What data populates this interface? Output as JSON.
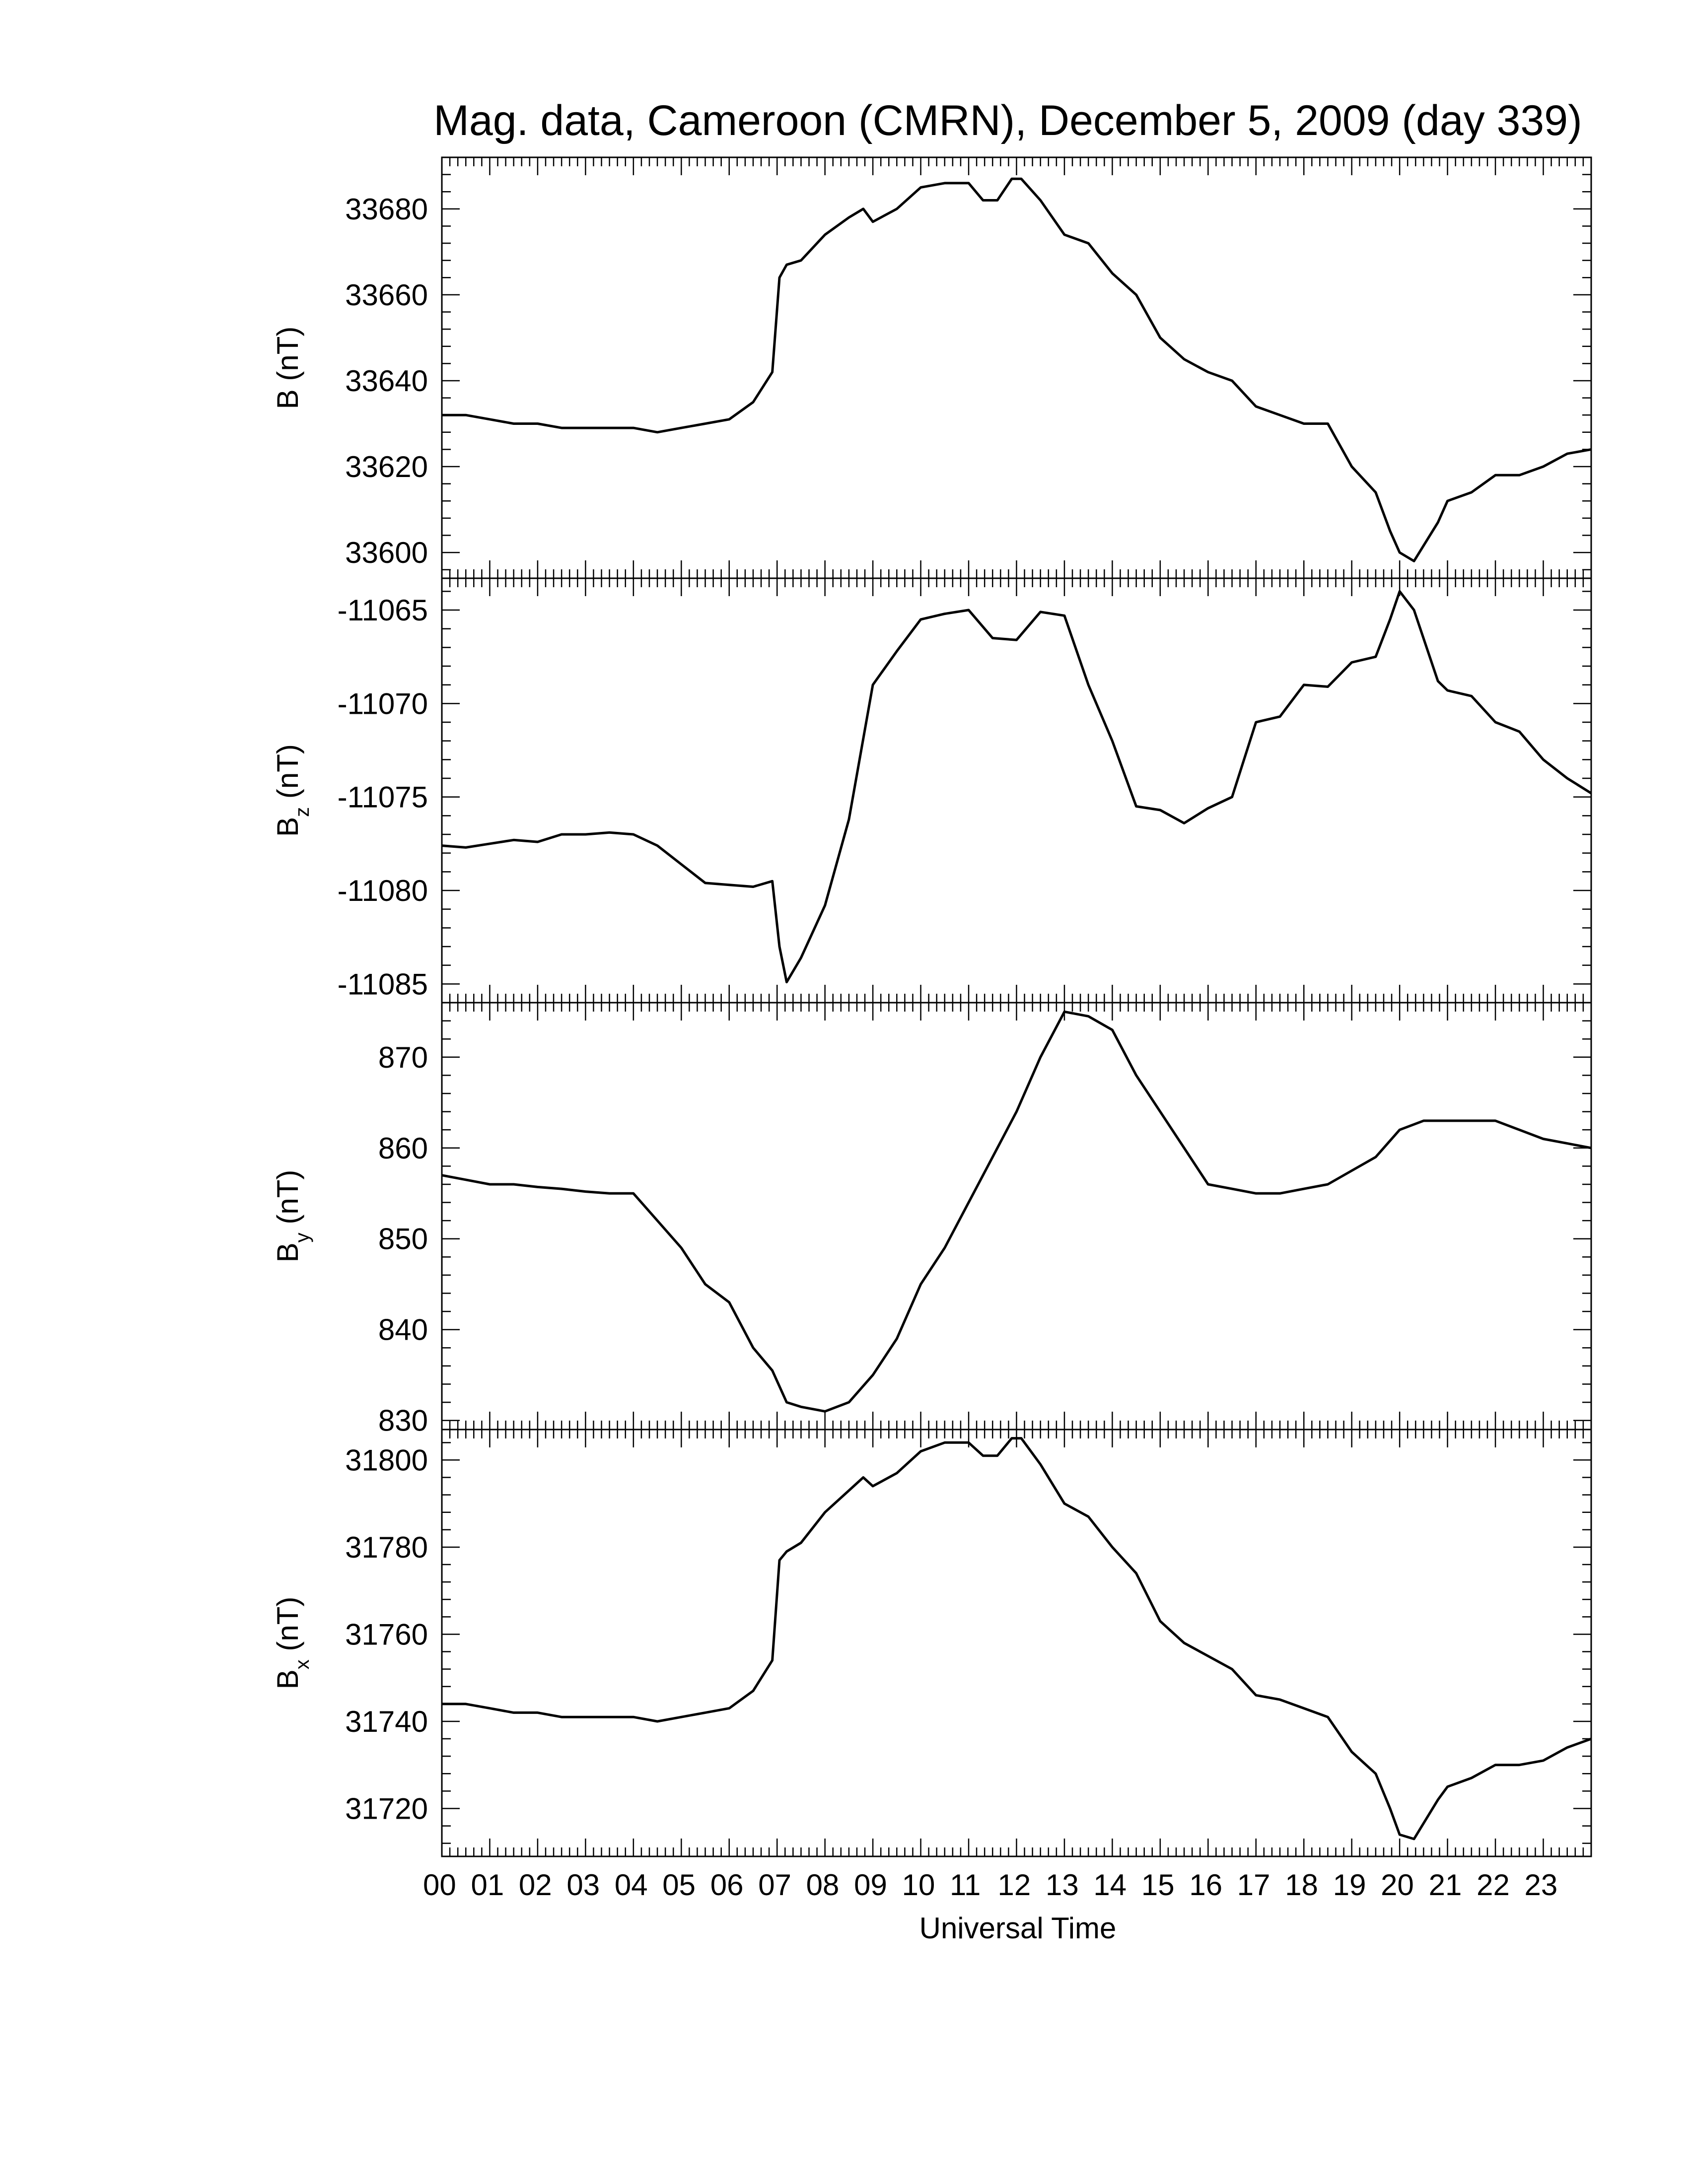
{
  "chart_data": {
    "type": "line",
    "title": "Mag. data, Cameroon (CMRN), December 5, 2009 (day 339)",
    "xlabel": "Universal Time",
    "x_tick_labels": [
      "00",
      "01",
      "02",
      "03",
      "04",
      "05",
      "06",
      "07",
      "08",
      "09",
      "10",
      "11",
      "12",
      "13",
      "14",
      "15",
      "16",
      "17",
      "18",
      "19",
      "20",
      "21",
      "22",
      "23"
    ],
    "xlim": [
      0,
      24
    ],
    "x_unit": "hours UT",
    "grid": false,
    "line_color": "#000000",
    "panels": [
      {
        "ylabel": {
          "symbol": "B",
          "subscript": "",
          "unit": "(nT)"
        },
        "ylim": [
          33594,
          33692
        ],
        "y_ticks": [
          33600,
          33620,
          33640,
          33660,
          33680
        ],
        "y_tick_labels": [
          "33600",
          "33620",
          "33640",
          "33660",
          "33680"
        ],
        "series": [
          {
            "x": [
              0,
              0.5,
              1,
              1.5,
              2,
              2.5,
              3,
              3.5,
              4,
              4.5,
              5,
              5.5,
              6,
              6.5,
              6.9,
              7.05,
              7.2,
              7.5,
              8,
              8.5,
              8.8,
              9,
              9.5,
              10,
              10.5,
              11,
              11.3,
              11.6,
              11.9,
              12.1,
              12.5,
              13,
              13.5,
              14,
              14.5,
              15,
              15.5,
              16,
              16.5,
              17,
              17.5,
              18,
              18.5,
              19,
              19.5,
              19.8,
              20,
              20.3,
              20.8,
              21,
              21.5,
              22,
              22.5,
              23,
              23.5,
              24
            ],
            "y": [
              33632,
              33632,
              33631,
              33630,
              33630,
              33629,
              33629,
              33629,
              33629,
              33628,
              33629,
              33630,
              33631,
              33635,
              33642,
              33664,
              33667,
              33668,
              33674,
              33678,
              33680,
              33677,
              33680,
              33685,
              33686,
              33686,
              33682,
              33682,
              33687,
              33687,
              33682,
              33674,
              33672,
              33665,
              33660,
              33650,
              33645,
              33642,
              33640,
              33634,
              33632,
              33630,
              33630,
              33620,
              33614,
              33605,
              33600,
              33598,
              33607,
              33612,
              33614,
              33618,
              33618,
              33620,
              33623,
              33624
            ]
          }
        ]
      },
      {
        "ylabel": {
          "symbol": "B",
          "subscript": "z",
          "unit": "(nT)"
        },
        "ylim": [
          -11086.0,
          -11063.3
        ],
        "y_ticks": [
          -11085,
          -11080,
          -11075,
          -11070,
          -11065
        ],
        "y_tick_labels": [
          "-11085",
          "-11080",
          "-11075",
          "-11070",
          "-11065"
        ],
        "series": [
          {
            "x": [
              0,
              0.5,
              1,
              1.5,
              2,
              2.5,
              3,
              3.5,
              4,
              4.5,
              5,
              5.5,
              6,
              6.5,
              6.9,
              7.05,
              7.2,
              7.5,
              8,
              8.5,
              9,
              9.5,
              10,
              10.5,
              11,
              11.5,
              12,
              12.5,
              13,
              13.5,
              14,
              14.5,
              15,
              15.5,
              16,
              16.5,
              17,
              17.5,
              18,
              18.5,
              19,
              19.5,
              19.8,
              20,
              20.3,
              20.8,
              21,
              21.5,
              22,
              22.5,
              23,
              23.5,
              24
            ],
            "y": [
              -11077.6,
              -11077.7,
              -11077.5,
              -11077.3,
              -11077.4,
              -11077.0,
              -11077.0,
              -11076.9,
              -11077.0,
              -11077.6,
              -11078.6,
              -11079.6,
              -11079.7,
              -11079.8,
              -11079.5,
              -11083.0,
              -11084.9,
              -11083.6,
              -11080.8,
              -11076.2,
              -11069.0,
              -11067.2,
              -11065.5,
              -11065.2,
              -11065.0,
              -11066.5,
              -11066.6,
              -11065.1,
              -11065.3,
              -11069.0,
              -11072.0,
              -11075.5,
              -11075.7,
              -11076.4,
              -11075.6,
              -11075.0,
              -11071.0,
              -11070.7,
              -11069.0,
              -11069.1,
              -11067.8,
              -11067.5,
              -11065.5,
              -11064.0,
              -11065.0,
              -11068.8,
              -11069.3,
              -11069.6,
              -11071.0,
              -11071.5,
              -11073.0,
              -11074.0,
              -11074.8
            ]
          }
        ]
      },
      {
        "ylabel": {
          "symbol": "B",
          "subscript": "y",
          "unit": "(nT)"
        },
        "ylim": [
          829,
          876
        ],
        "y_ticks": [
          830,
          840,
          850,
          860,
          870
        ],
        "y_tick_labels": [
          "830",
          "840",
          "850",
          "860",
          "870"
        ],
        "series": [
          {
            "x": [
              0,
              0.5,
              1,
              1.5,
              2,
              2.5,
              3,
              3.5,
              4,
              4.5,
              5,
              5.5,
              6,
              6.5,
              6.9,
              7.2,
              7.5,
              8,
              8.5,
              9,
              9.5,
              10,
              10.5,
              11,
              11.5,
              12,
              12.5,
              13,
              13.5,
              14,
              14.5,
              15,
              15.5,
              16,
              16.5,
              17,
              17.5,
              18,
              18.5,
              19,
              19.5,
              20,
              20.5,
              21,
              21.5,
              22,
              22.5,
              23,
              23.5,
              24
            ],
            "y": [
              857,
              856.5,
              856,
              856,
              855.7,
              855.5,
              855.2,
              855,
              855,
              852,
              849,
              845,
              843,
              838,
              835.5,
              832,
              831.5,
              831,
              832,
              835,
              839,
              845,
              849,
              854,
              859,
              864,
              870,
              875,
              874.5,
              873,
              868,
              864,
              860,
              856,
              855.5,
              855,
              855,
              855.5,
              856,
              857.5,
              859,
              862,
              863,
              863,
              863,
              863,
              862,
              861,
              860.5,
              860
            ]
          }
        ]
      },
      {
        "ylabel": {
          "symbol": "B",
          "subscript": "x",
          "unit": "(nT)"
        },
        "ylim": [
          31709,
          31807
        ],
        "y_ticks": [
          31720,
          31740,
          31760,
          31780,
          31800
        ],
        "y_tick_labels": [
          "31720",
          "31740",
          "31760",
          "31780",
          "31800"
        ],
        "series": [
          {
            "x": [
              0,
              0.5,
              1,
              1.5,
              2,
              2.5,
              3,
              3.5,
              4,
              4.5,
              5,
              5.5,
              6,
              6.5,
              6.9,
              7.05,
              7.2,
              7.5,
              8,
              8.5,
              8.8,
              9,
              9.5,
              10,
              10.5,
              11,
              11.3,
              11.6,
              11.9,
              12.1,
              12.5,
              13,
              13.5,
              14,
              14.5,
              15,
              15.5,
              16,
              16.5,
              17,
              17.5,
              18,
              18.5,
              19,
              19.5,
              19.8,
              20,
              20.3,
              20.8,
              21,
              21.5,
              22,
              22.5,
              23,
              23.5,
              24
            ],
            "y": [
              31744,
              31744,
              31743,
              31742,
              31742,
              31741,
              31741,
              31741,
              31741,
              31740,
              31741,
              31742,
              31743,
              31747,
              31754,
              31777,
              31779,
              31781,
              31788,
              31793,
              31796,
              31794,
              31797,
              31802,
              31804,
              31804,
              31801,
              31801,
              31805,
              31805,
              31799,
              31790,
              31787,
              31780,
              31774,
              31763,
              31758,
              31755,
              31752,
              31746,
              31745,
              31743,
              31741,
              31733,
              31728,
              31720,
              31714,
              31713,
              31722,
              31725,
              31727,
              31730,
              31730,
              31731,
              31734,
              31736
            ]
          }
        ]
      }
    ]
  }
}
